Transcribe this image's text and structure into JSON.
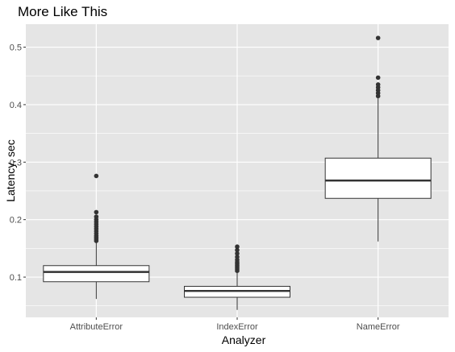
{
  "chart_data": {
    "type": "boxplot",
    "title": "More Like This",
    "xlabel": "Analyzer",
    "ylabel": "Latency, sec",
    "ylim": [
      0.03,
      0.54
    ],
    "yticks": [
      0.1,
      0.2,
      0.3,
      0.4,
      0.5
    ],
    "ytick_labels": [
      "0.1",
      "0.2",
      "0.3",
      "0.4",
      "0.5"
    ],
    "grid": true,
    "legend": "none",
    "categories": [
      "AttributeError",
      "IndexError",
      "NameError"
    ],
    "boxes": [
      {
        "category": "AttributeError",
        "whisker_low": 0.062,
        "q1": 0.092,
        "median": 0.109,
        "q3": 0.12,
        "whisker_high": 0.16,
        "outliers": [
          0.163,
          0.166,
          0.169,
          0.172,
          0.176,
          0.18,
          0.184,
          0.188,
          0.192,
          0.196,
          0.2,
          0.205,
          0.213,
          0.276
        ]
      },
      {
        "category": "IndexError",
        "whisker_low": 0.043,
        "q1": 0.065,
        "median": 0.076,
        "q3": 0.084,
        "whisker_high": 0.109,
        "outliers": [
          0.111,
          0.114,
          0.117,
          0.12,
          0.123,
          0.126,
          0.13,
          0.135,
          0.141,
          0.147,
          0.153
        ]
      },
      {
        "category": "NameError",
        "whisker_low": 0.162,
        "q1": 0.237,
        "median": 0.268,
        "q3": 0.307,
        "whisker_high": 0.411,
        "outliers": [
          0.415,
          0.42,
          0.425,
          0.43,
          0.435,
          0.447,
          0.516
        ]
      }
    ]
  },
  "colors": {
    "panel_background": "#e5e5e5",
    "grid_major": "#ffffff",
    "box_fill": "#ffffff",
    "box_line": "#333333",
    "point": "#333333",
    "tick_text": "#4d4d4d"
  }
}
